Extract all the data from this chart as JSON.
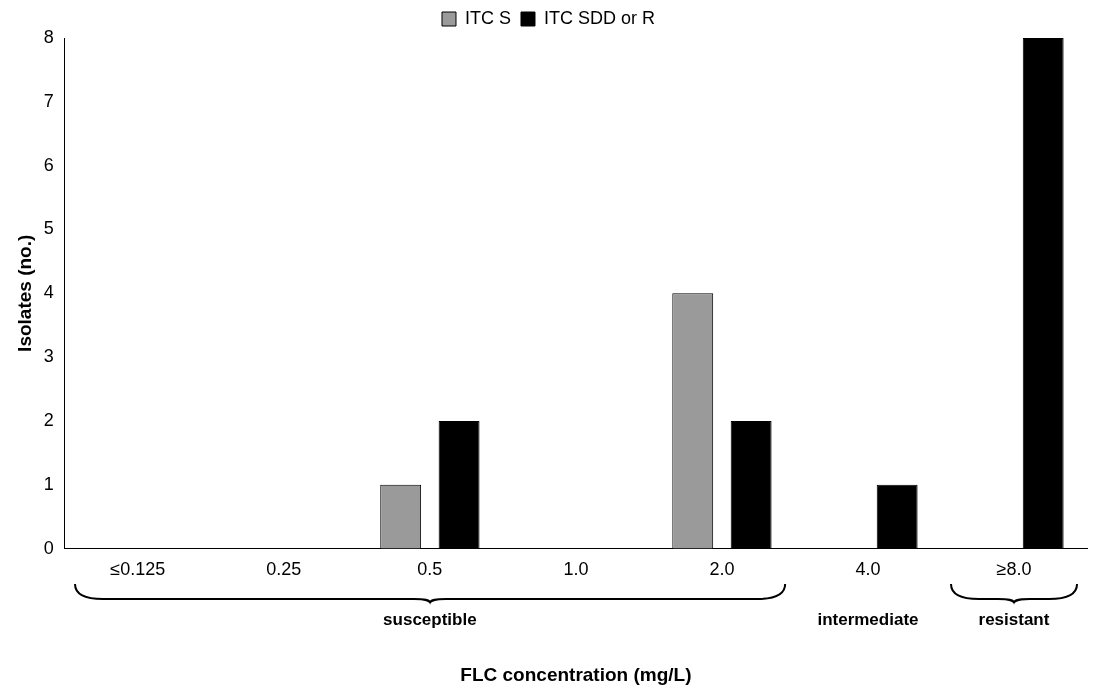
{
  "chart_data": {
    "type": "bar",
    "xlabel": "FLC concentration (mg/L)",
    "ylabel": "Isolates (no.)",
    "categories": [
      "≤0.125",
      "0.25",
      "0.5",
      "1.0",
      "2.0",
      "4.0",
      "≥8.0"
    ],
    "series": [
      {
        "name": "ITC S",
        "color": "#9a9a9a",
        "values": [
          0,
          0,
          1,
          0,
          4,
          0,
          0
        ]
      },
      {
        "name": "ITC SDD or R",
        "color": "#000000",
        "values": [
          0,
          0,
          2,
          0,
          2,
          1,
          8
        ]
      }
    ],
    "ylim": [
      0,
      8
    ],
    "yticks": [
      0,
      1,
      2,
      3,
      4,
      5,
      6,
      7,
      8
    ],
    "grid": false,
    "legend": "top",
    "annotations": [
      "susceptible",
      "intermediate",
      "resistant"
    ]
  }
}
